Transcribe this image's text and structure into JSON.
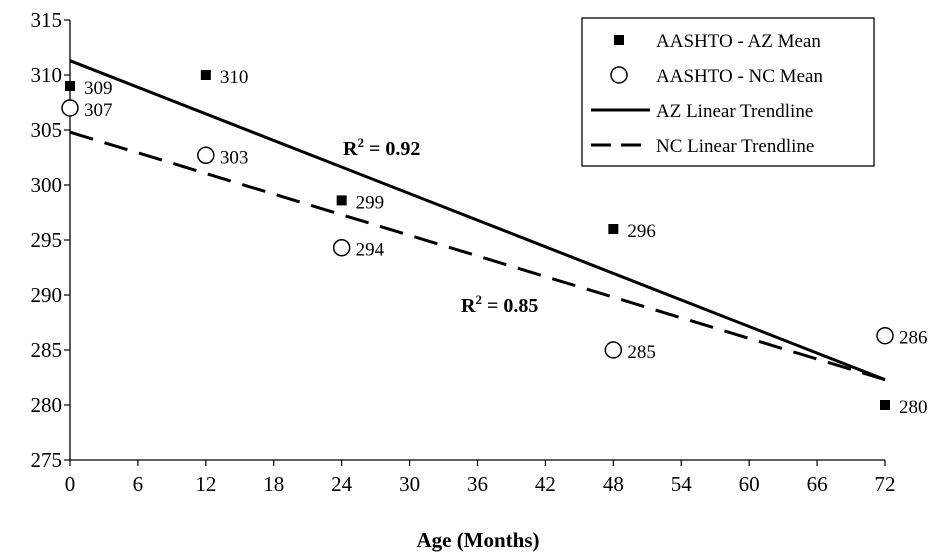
{
  "chart_data": {
    "type": "scatter",
    "xlabel": "Age (Months)",
    "ylabel": "",
    "xlim": [
      0,
      72
    ],
    "ylim": [
      275,
      315
    ],
    "x_ticks": [
      0,
      6,
      12,
      18,
      24,
      30,
      36,
      42,
      48,
      54,
      60,
      66,
      72
    ],
    "y_ticks": [
      275,
      280,
      285,
      290,
      295,
      300,
      305,
      310,
      315
    ],
    "grid": false,
    "legend_position": "top-right",
    "series": [
      {
        "name": "AASHTO - AZ Mean",
        "marker": "filled-square",
        "color": "#000000",
        "points": [
          {
            "x": 0,
            "y": 309,
            "label": "309"
          },
          {
            "x": 12,
            "y": 310,
            "label": "310"
          },
          {
            "x": 24,
            "y": 298.6,
            "label": "299"
          },
          {
            "x": 48,
            "y": 296,
            "label": "296"
          },
          {
            "x": 72,
            "y": 280,
            "label": "280"
          }
        ]
      },
      {
        "name": "AASHTO - NC Mean",
        "marker": "open-circle",
        "color": "#000000",
        "points": [
          {
            "x": 0,
            "y": 307,
            "label": "307"
          },
          {
            "x": 12,
            "y": 302.7,
            "label": "303"
          },
          {
            "x": 24,
            "y": 294.3,
            "label": "294"
          },
          {
            "x": 48,
            "y": 285,
            "label": "285"
          },
          {
            "x": 72,
            "y": 286.3,
            "label": "286"
          }
        ]
      }
    ],
    "trendlines": [
      {
        "name": "AZ Linear Trendline",
        "style": "solid",
        "from": [
          0,
          311.3
        ],
        "to": [
          72,
          282.3
        ],
        "r2_text": "R² = 0.92"
      },
      {
        "name": "NC Linear Trendline",
        "style": "dashed",
        "from": [
          0,
          304.8
        ],
        "to": [
          72,
          282.3
        ],
        "r2_text": "R² = 0.85"
      }
    ]
  }
}
